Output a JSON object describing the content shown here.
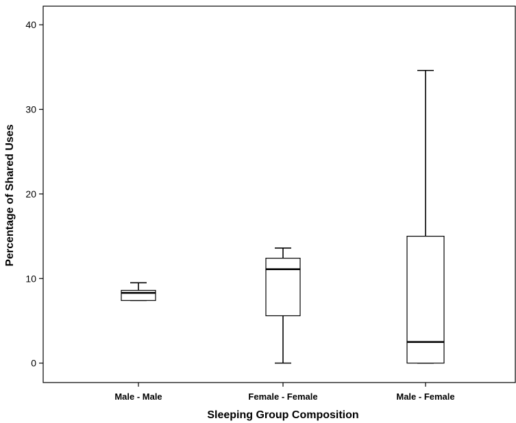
{
  "chart_data": {
    "type": "box",
    "xlabel": "Sleeping Group Composition",
    "ylabel": "Percentage of Shared Uses",
    "ylim": [
      -2.3,
      42.2
    ],
    "yticks": [
      0,
      10,
      20,
      30,
      40
    ],
    "grid": false,
    "categories": [
      "Male - Male",
      "Female - Female",
      "Male - Female"
    ],
    "boxes": [
      {
        "category": "Male - Male",
        "min": 7.4,
        "q1": 7.4,
        "median": 8.3,
        "q3": 8.6,
        "max": 9.5
      },
      {
        "category": "Female - Female",
        "min": 0,
        "q1": 5.6,
        "median": 11.1,
        "q3": 12.4,
        "max": 13.6
      },
      {
        "category": "Male - Female",
        "min": 0,
        "q1": 0,
        "median": 2.5,
        "q3": 15.0,
        "max": 34.6
      }
    ]
  },
  "colors": {
    "stroke": "#000000",
    "box_fill": "#ffffff",
    "background": "#ffffff"
  }
}
